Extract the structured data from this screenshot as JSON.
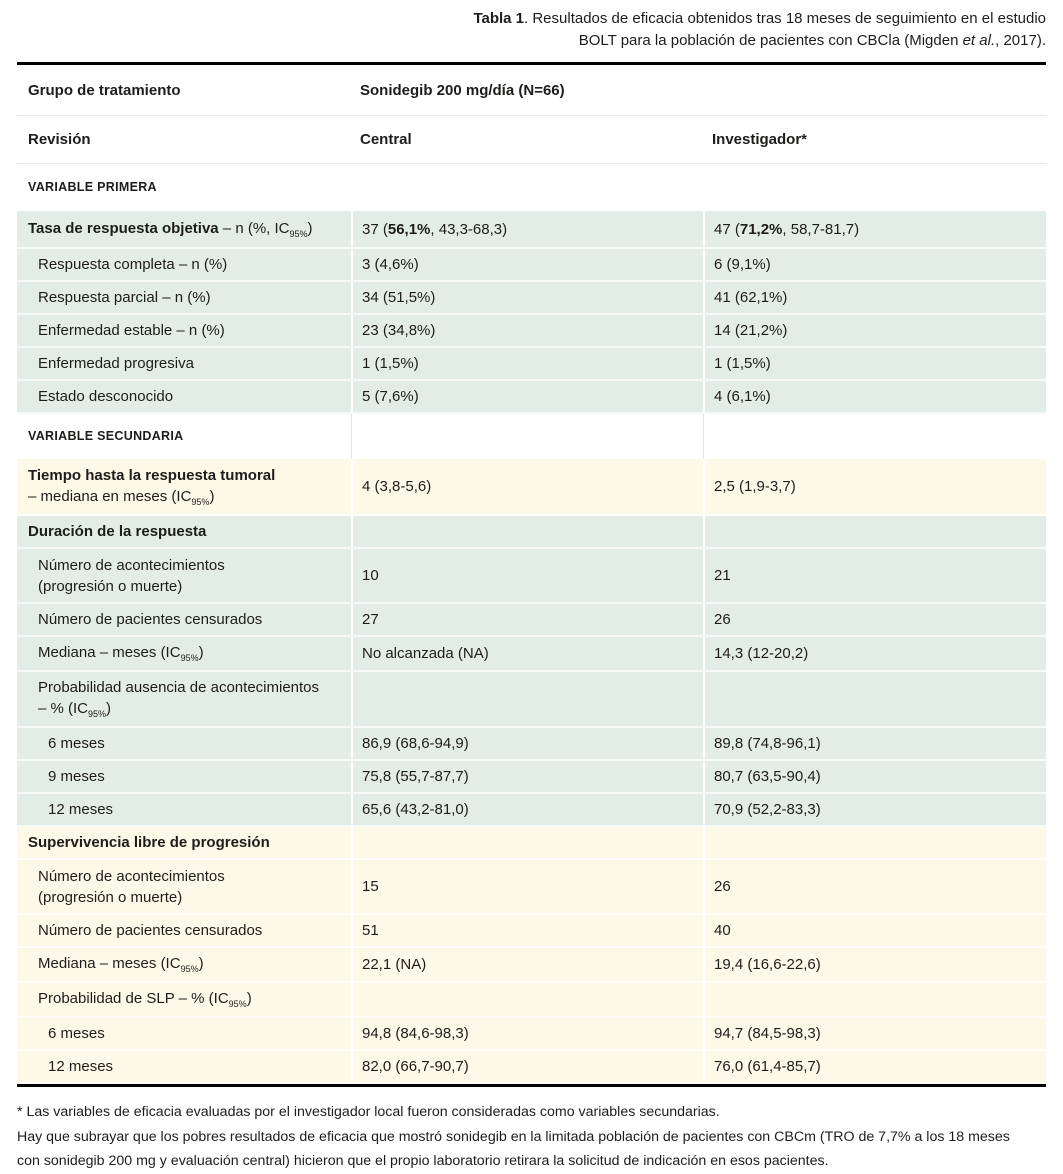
{
  "colors": {
    "row_green": "#e3ede8",
    "row_cream": "#fdf9e8",
    "table_border": "#000000",
    "text": "#1d1d1b"
  },
  "title": [
    {
      "t": "Tabla 1",
      "b": 1
    },
    {
      "t": ". Resultados de eficacia obtenidos tras 18 meses de seguimiento en el estudio"
    },
    {
      "t": "BOLT para la población de pacientes con CBCla (Migden ",
      "br": 1
    },
    {
      "t": "et al.",
      "i": 1
    },
    {
      "t": ", 2017)."
    }
  ],
  "header": {
    "group_label": [
      {
        "t": "Grupo de tratamiento",
        "b": 1
      }
    ],
    "group_value": [
      {
        "t": "Sonidegib 200 mg/día (N=66)",
        "b": 1
      }
    ],
    "review_label": [
      {
        "t": "Revisión",
        "b": 1
      }
    ],
    "review_central": [
      {
        "t": "Central",
        "b": 1
      }
    ],
    "review_investigator": [
      {
        "t": "Investigador*",
        "b": 1
      }
    ]
  },
  "rows": [
    {
      "label": [
        {
          "t": "VARIABLE PRIMERA",
          "b": 1
        }
      ],
      "central": "",
      "investigator": ""
    },
    {
      "label": [
        {
          "t": "Tasa de respuesta objetiva",
          "b": 1
        },
        {
          "t": " – n (%, IC"
        },
        {
          "t": "95%",
          "sub": 1
        },
        {
          "t": ")"
        }
      ],
      "central": [
        {
          "t": "37 ("
        },
        {
          "t": "56,1%",
          "b": 1
        },
        {
          "t": ", 43,3-68,3)"
        }
      ],
      "investigator": [
        {
          "t": "47 ("
        },
        {
          "t": "71,2%",
          "b": 1
        },
        {
          "t": ", 58,7-81,7)"
        }
      ]
    },
    {
      "label": [
        {
          "t": "Respuesta completa – n (%)"
        }
      ],
      "central": "3 (4,6%)",
      "investigator": "6 (9,1%)"
    },
    {
      "label": [
        {
          "t": "Respuesta parcial – n (%)"
        }
      ],
      "central": "34 (51,5%)",
      "investigator": "41 (62,1%)"
    },
    {
      "label": [
        {
          "t": "Enfermedad estable – n (%)"
        }
      ],
      "central": "23 (34,8%)",
      "investigator": "14 (21,2%)"
    },
    {
      "label": [
        {
          "t": "Enfermedad progresiva"
        }
      ],
      "central": "1 (1,5%)",
      "investigator": "1 (1,5%)"
    },
    {
      "label": [
        {
          "t": "Estado desconocido"
        }
      ],
      "central": "5 (7,6%)",
      "investigator": "4 (6,1%)"
    },
    {
      "label": [
        {
          "t": "VARIABLE SECUNDARIA",
          "b": 1
        }
      ],
      "central": "",
      "investigator": ""
    },
    {
      "label": [
        {
          "t": "Tiempo hasta la respuesta tumoral",
          "b": 1
        },
        {
          "t": "– mediana en meses (IC",
          "br": 1
        },
        {
          "t": "95%",
          "sub": 1
        },
        {
          "t": ")"
        }
      ],
      "central": "4 (3,8-5,6)",
      "investigator": "2,5 (1,9-3,7)"
    },
    {
      "label": [
        {
          "t": "Duración de la respuesta",
          "b": 1
        }
      ],
      "central": "",
      "investigator": ""
    },
    {
      "label": [
        {
          "t": "Número de acontecimientos"
        },
        {
          "t": "(progresión o muerte)",
          "br": 1
        }
      ],
      "central": "10",
      "investigator": "21"
    },
    {
      "label": [
        {
          "t": "Número de pacientes censurados"
        }
      ],
      "central": "27",
      "investigator": "26"
    },
    {
      "label": [
        {
          "t": "Mediana – meses (IC"
        },
        {
          "t": "95%",
          "sub": 1
        },
        {
          "t": ")"
        }
      ],
      "central": "No alcanzada (NA)",
      "investigator": "14,3 (12-20,2)"
    },
    {
      "label": [
        {
          "t": "Probabilidad ausencia de acontecimientos"
        },
        {
          "t": "– % (IC",
          "br": 1
        },
        {
          "t": "95%",
          "sub": 1
        },
        {
          "t": ")"
        }
      ],
      "central": "",
      "investigator": ""
    },
    {
      "label": [
        {
          "t": "6 meses"
        }
      ],
      "central": "86,9 (68,6-94,9)",
      "investigator": "89,8 (74,8-96,1)"
    },
    {
      "label": [
        {
          "t": "9 meses"
        }
      ],
      "central": "75,8 (55,7-87,7)",
      "investigator": "80,7 (63,5-90,4)"
    },
    {
      "label": [
        {
          "t": "12 meses"
        }
      ],
      "central": "65,6 (43,2-81,0)",
      "investigator": "70,9 (52,2-83,3)"
    },
    {
      "label": [
        {
          "t": "Supervivencia libre de progresión",
          "b": 1
        }
      ],
      "central": "",
      "investigator": ""
    },
    {
      "label": [
        {
          "t": "Número de acontecimientos"
        },
        {
          "t": "(progresión o muerte)",
          "br": 1
        }
      ],
      "central": "15",
      "investigator": "26"
    },
    {
      "label": [
        {
          "t": "Número de pacientes censurados"
        }
      ],
      "central": "51",
      "investigator": "40"
    },
    {
      "label": [
        {
          "t": "Mediana – meses (IC"
        },
        {
          "t": "95%",
          "sub": 1
        },
        {
          "t": ")"
        }
      ],
      "central": "22,1 (NA)",
      "investigator": "19,4 (16,6-22,6)"
    },
    {
      "label": [
        {
          "t": "Probabilidad de SLP – % (IC"
        },
        {
          "t": "95%",
          "sub": 1
        },
        {
          "t": ")"
        }
      ],
      "central": "",
      "investigator": ""
    },
    {
      "label": [
        {
          "t": "6 meses"
        }
      ],
      "central": "94,8 (84,6-98,3)",
      "investigator": "94,7 (84,5-98,3)"
    },
    {
      "label": [
        {
          "t": "12 meses"
        }
      ],
      "central": "82,0 (66,7-90,7)",
      "investigator": "76,0 (61,4-85,7)"
    }
  ],
  "footnotes": [
    "* Las variables de eficacia evaluadas por el investigador local fueron consideradas como variables secundarias.",
    "Hay que subrayar que los pobres resultados de eficacia que mostró sonidegib en la limitada población de pacientes con CBCm (TRO de 7,7% a los 18 meses",
    "con sonidegib 200 mg y evaluación central) hicieron que el propio laboratorio retirara la solicitud de indicación en esos pacientes."
  ]
}
